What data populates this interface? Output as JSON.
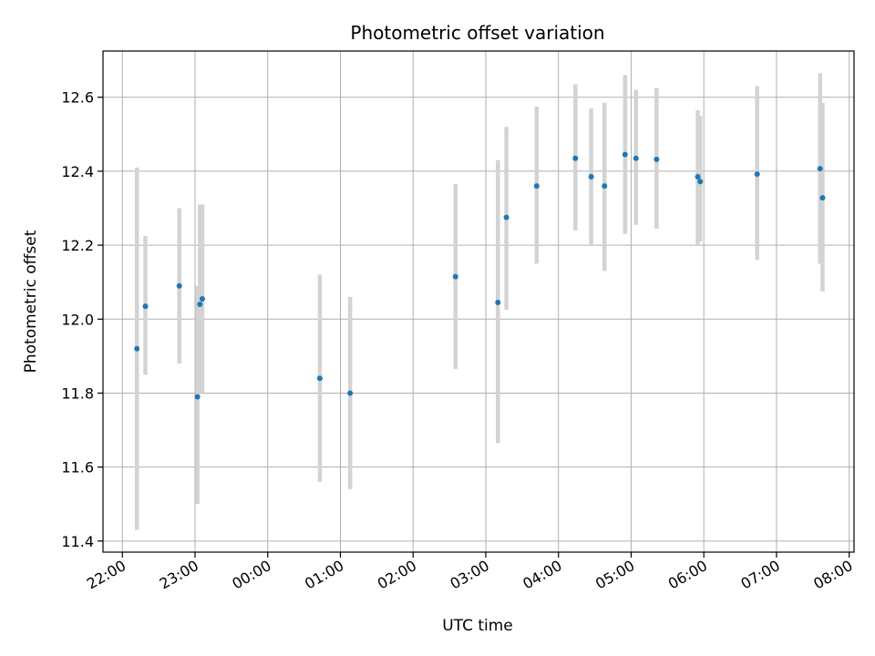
{
  "chart_data": {
    "type": "scatter",
    "title": "Photometric offset variation",
    "xlabel": "UTC time",
    "ylabel": "Photometric offset",
    "x_axis": "time",
    "x_unit": "hours",
    "xlim": [
      "21:44",
      "08:04"
    ],
    "ylim": [
      11.37,
      12.725
    ],
    "xticks": [
      "22:00",
      "23:00",
      "00:00",
      "01:00",
      "02:00",
      "03:00",
      "04:00",
      "05:00",
      "06:00",
      "07:00",
      "08:00"
    ],
    "yticks": [
      "11.4",
      "11.6",
      "11.8",
      "12.0",
      "12.2",
      "12.4",
      "12.6"
    ],
    "grid": true,
    "point_color": "#1f77b4",
    "errorbar_color": "#d3d3d3",
    "points": [
      {
        "x": "22:12",
        "y": 11.92,
        "yerr_low": 11.43,
        "yerr_high": 12.41
      },
      {
        "x": "22:19",
        "y": 12.035,
        "yerr_low": 11.85,
        "yerr_high": 12.225
      },
      {
        "x": "22:47",
        "y": 12.09,
        "yerr_low": 11.88,
        "yerr_high": 12.3
      },
      {
        "x": "23:02",
        "y": 11.79,
        "yerr_low": 11.5,
        "yerr_high": 12.09
      },
      {
        "x": "23:04",
        "y": 12.04,
        "yerr_low": 11.8,
        "yerr_high": 12.31
      },
      {
        "x": "23:06",
        "y": 12.055,
        "yerr_low": 11.8,
        "yerr_high": 12.31
      },
      {
        "x": "00:43",
        "y": 11.84,
        "yerr_low": 11.56,
        "yerr_high": 12.12
      },
      {
        "x": "01:08",
        "y": 11.8,
        "yerr_low": 11.54,
        "yerr_high": 12.06
      },
      {
        "x": "02:35",
        "y": 12.115,
        "yerr_low": 11.865,
        "yerr_high": 12.365
      },
      {
        "x": "03:10",
        "y": 12.045,
        "yerr_low": 11.665,
        "yerr_high": 12.43
      },
      {
        "x": "03:17",
        "y": 12.275,
        "yerr_low": 12.025,
        "yerr_high": 12.52
      },
      {
        "x": "03:42",
        "y": 12.36,
        "yerr_low": 12.15,
        "yerr_high": 12.575
      },
      {
        "x": "04:14",
        "y": 12.435,
        "yerr_low": 12.24,
        "yerr_high": 12.635
      },
      {
        "x": "04:27",
        "y": 12.385,
        "yerr_low": 12.2,
        "yerr_high": 12.57
      },
      {
        "x": "04:38",
        "y": 12.36,
        "yerr_low": 12.13,
        "yerr_high": 12.585
      },
      {
        "x": "04:55",
        "y": 12.445,
        "yerr_low": 12.23,
        "yerr_high": 12.66
      },
      {
        "x": "05:04",
        "y": 12.435,
        "yerr_low": 12.255,
        "yerr_high": 12.62
      },
      {
        "x": "05:21",
        "y": 12.432,
        "yerr_low": 12.245,
        "yerr_high": 12.625
      },
      {
        "x": "05:55",
        "y": 12.385,
        "yerr_low": 12.2,
        "yerr_high": 12.565
      },
      {
        "x": "05:57",
        "y": 12.372,
        "yerr_low": 12.21,
        "yerr_high": 12.55
      },
      {
        "x": "06:44",
        "y": 12.392,
        "yerr_low": 12.16,
        "yerr_high": 12.63
      },
      {
        "x": "07:36",
        "y": 12.407,
        "yerr_low": 12.15,
        "yerr_high": 12.665
      },
      {
        "x": "07:38",
        "y": 12.328,
        "yerr_low": 12.075,
        "yerr_high": 12.585
      }
    ]
  }
}
